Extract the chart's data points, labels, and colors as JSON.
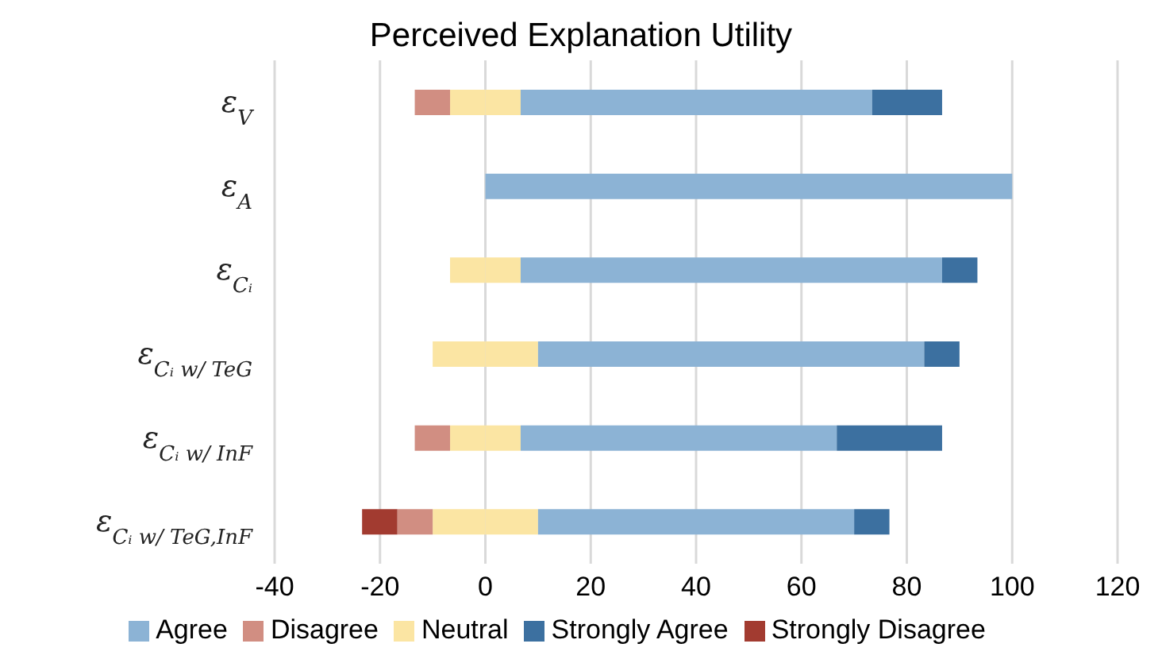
{
  "chart_data": {
    "type": "bar",
    "orientation": "horizontal",
    "stacked": true,
    "title": "Perceived Explanation Utility",
    "categories": [
      "ε$_{V}$",
      "ε$_{A}$",
      "ε$_{Cᵢ}$",
      "ε$_{Cᵢ w/ TeG}$",
      "ε$_{Cᵢ w/ InF}$",
      "ε$_{Cᵢ w/ TeG,InF}$"
    ],
    "series": [
      {
        "color": "#fbe5a3",
        "values": [
          -6.7,
          null,
          -6.7,
          -10,
          -6.7,
          -10
        ]
      },
      {
        "name": "Disagree",
        "color": "#d18e82",
        "values": [
          -6.7,
          null,
          null,
          null,
          -6.7,
          -6.7
        ]
      },
      {
        "name": "Strongly Disagree",
        "color": "#a23b30",
        "values": [
          null,
          null,
          null,
          null,
          null,
          -6.7
        ]
      },
      {
        "name": "Neutral",
        "color": "#fbe5a3",
        "values": [
          6.7,
          null,
          6.7,
          10,
          6.7,
          10
        ]
      },
      {
        "name": "Agree",
        "color": "#8cb3d5",
        "values": [
          66.7,
          100,
          80,
          73.3,
          60,
          60
        ]
      },
      {
        "name": "Strongly Agree",
        "color": "#3c70a0",
        "values": [
          13.3,
          null,
          6.7,
          6.7,
          20,
          6.7
        ]
      }
    ],
    "xlim": [
      -40,
      120
    ],
    "xticks": [
      -40,
      -20,
      0,
      20,
      40,
      60,
      80,
      100,
      120
    ],
    "grid": "x",
    "legend": "bottom"
  }
}
